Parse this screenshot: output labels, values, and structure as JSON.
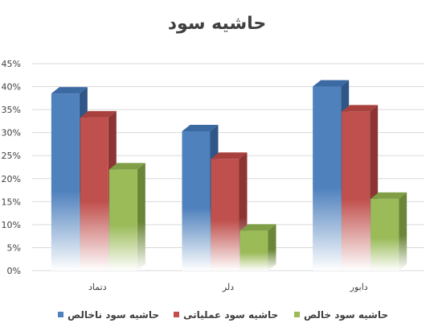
{
  "chart_data": {
    "type": "bar",
    "title": "حاشیه سود",
    "categories": [
      "دتماد",
      "دلر",
      "دابور"
    ],
    "series": [
      {
        "name": "حاشیه سود ناخالص",
        "values": [
          38.5,
          30.3,
          40
        ]
      },
      {
        "name": "حاشیه سود عملیاتی",
        "values": [
          33.3,
          24.3,
          34.6
        ]
      },
      {
        "name": "حاشیه سود خالص",
        "values": [
          22,
          8.7,
          15.6
        ]
      }
    ],
    "ylim": [
      0,
      45
    ],
    "yticks": [
      "0%",
      "5%",
      "10%",
      "15%",
      "20%",
      "25%",
      "30%",
      "35%",
      "40%",
      "45%"
    ],
    "grid": true,
    "legend_position": "bottom",
    "colors": {
      "series": [
        "#4f81bd",
        "#c0504d",
        "#9bbb59"
      ],
      "series_side": [
        "#2f5687",
        "#8c3533",
        "#6b8638"
      ],
      "series_top": [
        "#3b6aa3",
        "#a8403d",
        "#7f9e45"
      ],
      "grid": "#d9d9d9",
      "text": "#404040"
    }
  }
}
